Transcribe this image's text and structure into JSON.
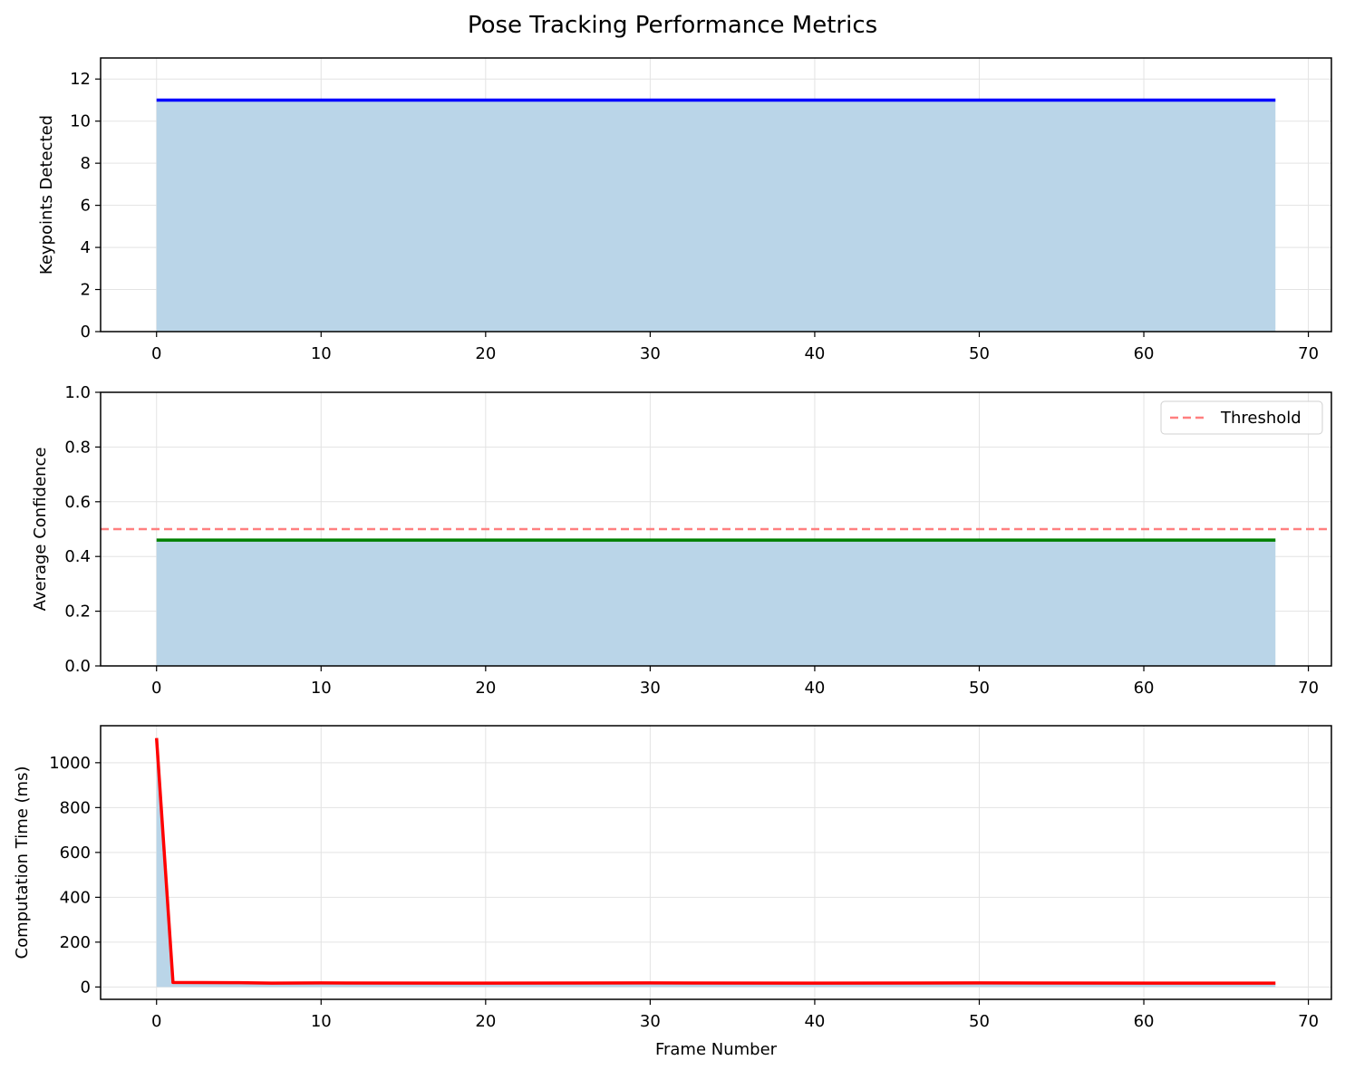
{
  "figure": {
    "title": "Pose Tracking Performance Metrics"
  },
  "colors": {
    "fill": "#bad5e8",
    "grid": "#e3e3e3",
    "axis": "#000000"
  },
  "chart_data": [
    {
      "type": "area",
      "ylabel": "Keypoints Detected",
      "xlabel": "",
      "xlim": [
        -3.4,
        71.4
      ],
      "ylim": [
        0,
        13
      ],
      "xticks": [
        0,
        10,
        20,
        30,
        40,
        50,
        60,
        70
      ],
      "yticks": [
        0,
        2,
        4,
        6,
        8,
        10,
        12
      ],
      "ytick_decimals": 0,
      "grid": true,
      "series": [
        {
          "color": "#0000ff",
          "x": [
            0,
            68
          ],
          "values": [
            11,
            11
          ]
        }
      ]
    },
    {
      "type": "area",
      "ylabel": "Average Confidence",
      "xlabel": "",
      "xlim": [
        -3.4,
        71.4
      ],
      "ylim": [
        0,
        1
      ],
      "xticks": [
        0,
        10,
        20,
        30,
        40,
        50,
        60,
        70
      ],
      "yticks": [
        0,
        0.2,
        0.4,
        0.6,
        0.8,
        1.0
      ],
      "ytick_decimals": 1,
      "grid": true,
      "series": [
        {
          "color": "#008000",
          "x": [
            0,
            68
          ],
          "values": [
            0.46,
            0.46
          ]
        }
      ],
      "threshold": {
        "name": "Threshold",
        "value": 0.5,
        "color": "#ff7f7f"
      },
      "legend": "top-right"
    },
    {
      "type": "area",
      "ylabel": "Computation Time (ms)",
      "xlabel": "Frame Number",
      "xlim": [
        -3.4,
        71.4
      ],
      "ylim": [
        -55,
        1165
      ],
      "xticks": [
        0,
        10,
        20,
        30,
        40,
        50,
        60,
        70
      ],
      "yticks": [
        0,
        200,
        400,
        600,
        800,
        1000
      ],
      "ytick_decimals": 0,
      "grid": true,
      "series": [
        {
          "color": "#ff0000",
          "x": [
            0,
            1,
            5,
            7,
            10,
            20,
            30,
            40,
            50,
            60,
            68
          ],
          "values": [
            1110,
            20,
            19,
            17,
            18,
            17,
            18,
            17,
            18,
            17,
            17
          ]
        }
      ]
    }
  ]
}
